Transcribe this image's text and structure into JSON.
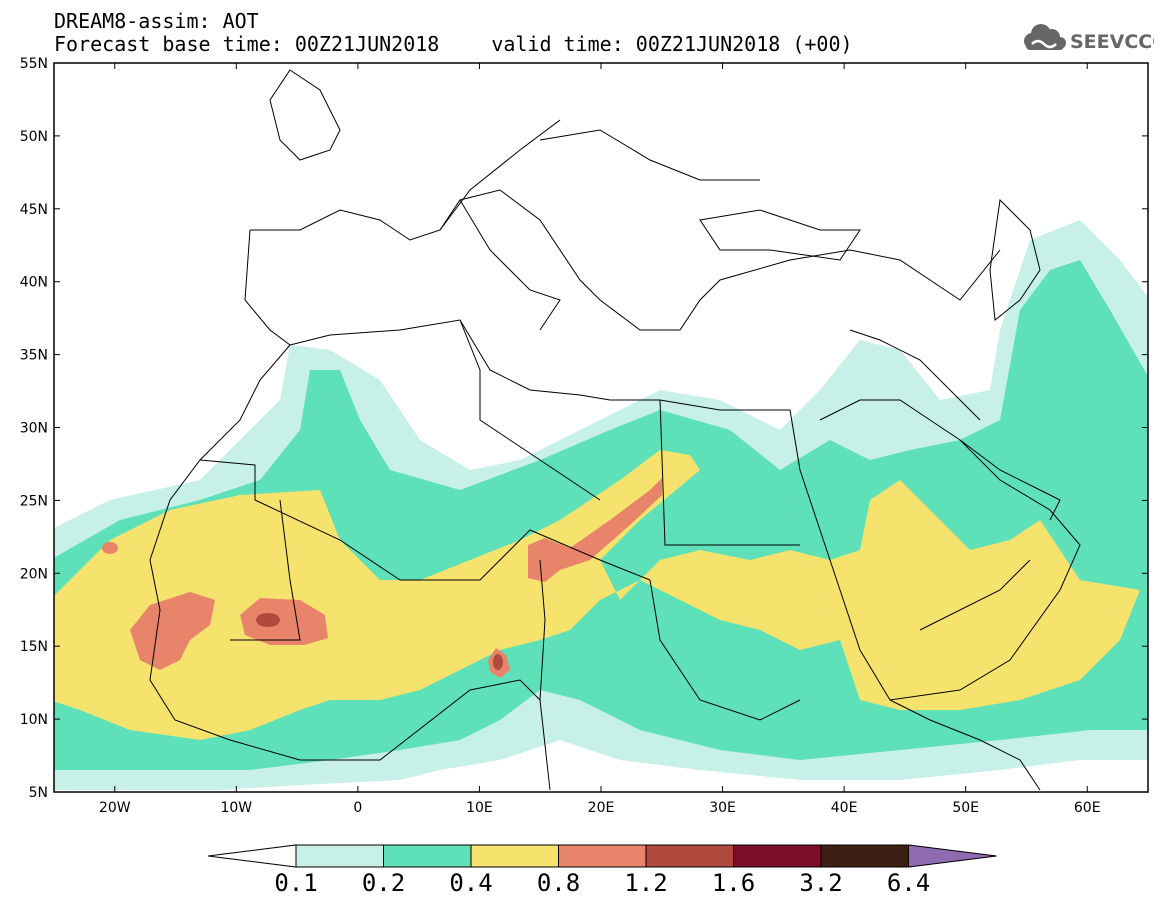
{
  "header": {
    "title": "DREAM8-assim: AOT",
    "base_time": "Forecast base time: 00Z21JUN2018",
    "valid_time": "valid time: 00Z21JUN2018 (+00)"
  },
  "logo": {
    "text": "SEEVCCC",
    "icon": "cloud-icon",
    "color": "#666666"
  },
  "map": {
    "lat_range": [
      5,
      55
    ],
    "lon_range": [
      -25,
      65
    ],
    "lat_ticks": [
      {
        "v": 55,
        "label": "55N"
      },
      {
        "v": 50,
        "label": "50N"
      },
      {
        "v": 45,
        "label": "45N"
      },
      {
        "v": 40,
        "label": "40N"
      },
      {
        "v": 35,
        "label": "35N"
      },
      {
        "v": 30,
        "label": "30N"
      },
      {
        "v": 25,
        "label": "25N"
      },
      {
        "v": 20,
        "label": "20N"
      },
      {
        "v": 15,
        "label": "15N"
      },
      {
        "v": 10,
        "label": "10N"
      },
      {
        "v": 5,
        "label": "5N"
      }
    ],
    "lon_ticks": [
      {
        "v": -20,
        "label": "20W"
      },
      {
        "v": -10,
        "label": "10W"
      },
      {
        "v": 0,
        "label": "0"
      },
      {
        "v": 10,
        "label": "10E"
      },
      {
        "v": 20,
        "label": "20E"
      },
      {
        "v": 30,
        "label": "30E"
      },
      {
        "v": 40,
        "label": "40E"
      },
      {
        "v": 50,
        "label": "50E"
      },
      {
        "v": 60,
        "label": "60E"
      }
    ],
    "aot_colors": [
      "#c6f0e8",
      "#5ee0b8",
      "#f5e36e",
      "#e8846a",
      "#b04a3e",
      "#7a0e2a",
      "#3c1e12",
      "#8f6ab0"
    ]
  },
  "colorbar": {
    "labels": [
      "0.1",
      "0.2",
      "0.4",
      "0.8",
      "1.2",
      "1.6",
      "3.2",
      "6.4"
    ],
    "colors": [
      "#c6f0e8",
      "#5ee0b8",
      "#f5e36e",
      "#e8846a",
      "#b04a3e",
      "#7a0e2a",
      "#3c1e12"
    ],
    "under_color": "#ffffff",
    "over_color": "#8f6ab0"
  }
}
